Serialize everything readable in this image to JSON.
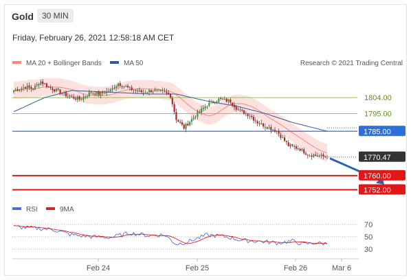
{
  "header": {
    "instrument": "Gold",
    "timeframe": "30 MIN",
    "datetime": "Friday, February 26, 2021 12:58:18 AM CET"
  },
  "legend": {
    "items": [
      {
        "label": "MA 20 + Bollinger Bands",
        "color": "#f08a80"
      },
      {
        "label": "MA 50",
        "color": "#2f5a9e"
      }
    ],
    "credit": "Research © 2021 Trading Central"
  },
  "rsi_legend": {
    "items": [
      {
        "label": "RSI",
        "color": "#4e6fd8"
      },
      {
        "label": "9MA",
        "color": "#e02020"
      }
    ]
  },
  "chart_data": [
    {
      "type": "candlestick",
      "x_ticks": [
        "Feb 24",
        "Feb 25",
        "Feb 26",
        "Mar 6"
      ],
      "ylim": [
        1746,
        1818
      ],
      "levels": [
        {
          "value": 1804.0,
          "label": "1804.00",
          "style": "resistance",
          "color": "#8ab84a"
        },
        {
          "value": 1795.0,
          "label": "1795.00",
          "style": "resistance",
          "color": "#8ab84a"
        },
        {
          "value": 1785.0,
          "label": "1785.00",
          "style": "pivot",
          "color": "#2f6fdb"
        },
        {
          "value": 1770.47,
          "label": "1770.47",
          "style": "last",
          "color": "#333333"
        },
        {
          "value": 1760.0,
          "label": "1760.00",
          "style": "target",
          "color": "#e01818"
        },
        {
          "value": 1752.0,
          "label": "1752.00",
          "style": "target",
          "color": "#e01818"
        }
      ],
      "ohlc_anchors": [
        [
          0,
          1808
        ],
        [
          6,
          1810
        ],
        [
          10,
          1809
        ],
        [
          14,
          1813
        ],
        [
          18,
          1810
        ],
        [
          24,
          1807
        ],
        [
          28,
          1805
        ],
        [
          34,
          1803
        ],
        [
          40,
          1807
        ],
        [
          44,
          1806
        ],
        [
          50,
          1808
        ],
        [
          54,
          1812
        ],
        [
          60,
          1809
        ],
        [
          66,
          1807
        ],
        [
          72,
          1808
        ],
        [
          78,
          1807
        ],
        [
          81,
          1805
        ],
        [
          84,
          1792
        ],
        [
          88,
          1787
        ],
        [
          94,
          1794
        ],
        [
          100,
          1800
        ],
        [
          106,
          1803
        ],
        [
          112,
          1802
        ],
        [
          116,
          1797
        ],
        [
          122,
          1794
        ],
        [
          126,
          1790
        ],
        [
          130,
          1788
        ],
        [
          136,
          1785
        ],
        [
          142,
          1777
        ],
        [
          148,
          1775
        ],
        [
          152,
          1772
        ],
        [
          158,
          1771
        ],
        [
          162,
          1770.47
        ]
      ],
      "ma50_anchors": [
        [
          0,
          1796
        ],
        [
          16,
          1804
        ],
        [
          30,
          1808
        ],
        [
          50,
          1807
        ],
        [
          70,
          1806
        ],
        [
          84,
          1806
        ],
        [
          100,
          1802
        ],
        [
          116,
          1799
        ],
        [
          130,
          1795
        ],
        [
          144,
          1790
        ],
        [
          162,
          1785
        ]
      ],
      "bb_width": 5,
      "forecast_arrow": {
        "from": [
          162,
          1770.47
        ],
        "to": [
          178,
          1755
        ]
      }
    },
    {
      "type": "line",
      "name": "RSI",
      "ylim": [
        20,
        80
      ],
      "y_ticks": [
        70,
        50,
        30
      ],
      "rsi_anchors": [
        [
          0,
          66
        ],
        [
          10,
          64
        ],
        [
          20,
          62
        ],
        [
          30,
          53
        ],
        [
          40,
          50
        ],
        [
          50,
          49
        ],
        [
          60,
          56
        ],
        [
          70,
          52
        ],
        [
          78,
          53
        ],
        [
          84,
          38
        ],
        [
          90,
          42
        ],
        [
          100,
          53
        ],
        [
          110,
          50
        ],
        [
          118,
          44
        ],
        [
          126,
          43
        ],
        [
          136,
          40
        ],
        [
          144,
          43
        ],
        [
          150,
          38
        ],
        [
          156,
          40
        ],
        [
          162,
          39
        ]
      ]
    }
  ]
}
